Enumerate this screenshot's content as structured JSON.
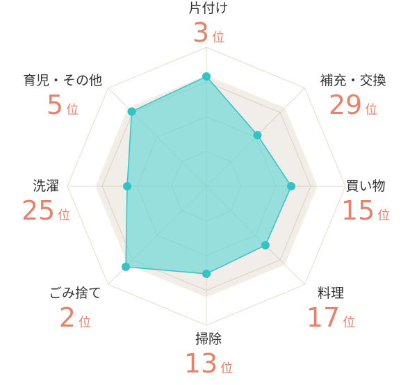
{
  "colors": {
    "accent": "#e5836a",
    "fill": "#5fd6d5",
    "point": "#33c3c6",
    "band": "#f7efe2",
    "grid": "#e4dcc8"
  },
  "rank_unit": "位",
  "chart_data": {
    "type": "radar",
    "axes": [
      "片付け",
      "補充・交換",
      "買い物",
      "料理",
      "掃除",
      "ごみ捨て",
      "洗濯",
      "育児・その他"
    ],
    "ranks": [
      3,
      29,
      15,
      17,
      13,
      2,
      25,
      5
    ],
    "series": [
      {
        "values": [
          0.79,
          0.52,
          0.61,
          0.6,
          0.63,
          0.82,
          0.57,
          0.76
        ]
      }
    ],
    "band_range": [
      0.79,
      0.8
    ],
    "rings": 4,
    "range": [
      0,
      1
    ]
  }
}
